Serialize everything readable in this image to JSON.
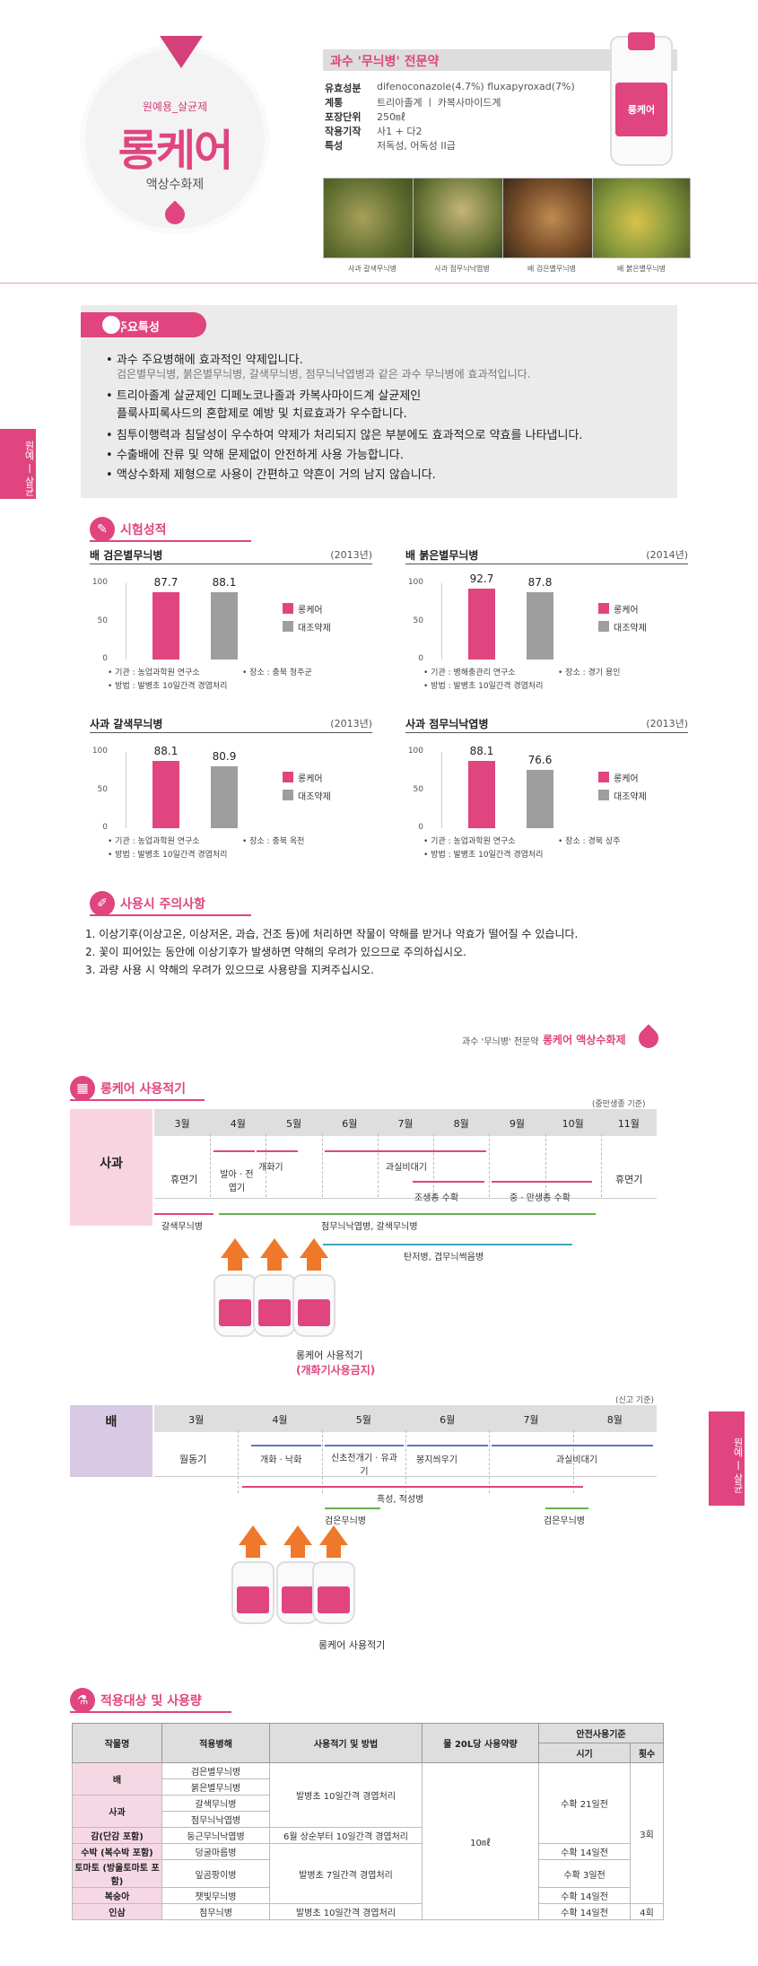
{
  "hero": {
    "subtitle": "원예용_살균제",
    "product_name": "롱케어",
    "formulation": "액상수화제"
  },
  "spec": {
    "title": "과수 '무늬병' 전문약",
    "rows": [
      {
        "key": "유효성분",
        "value": "difenoconazole(4.7%) fluxapyroxad(7%)"
      },
      {
        "key": "계통",
        "value": "트리아졸계 ㅣ 카복사마이드계"
      },
      {
        "key": "포장단위",
        "value": "250㎖"
      },
      {
        "key": "작용기작",
        "value": "사1 + 다2"
      },
      {
        "key": "특성",
        "value": "저독성, 어독성 ⅠⅠ급"
      }
    ],
    "bottle_label": "롱케어",
    "photos": [
      {
        "caption": "사과 갈색무늬병"
      },
      {
        "caption": "사과 점무늬낙엽병"
      },
      {
        "caption": "배 검은별무늬병"
      },
      {
        "caption": "배 붉은별무늬병"
      }
    ]
  },
  "side_tab_top": "원예 ㅣ 살균",
  "side_tab_bottom": "원예 ㅣ 살균",
  "features": {
    "heading": "주요특성",
    "items": [
      {
        "main": "과수 주요병해에 효과적인 약제입니다.",
        "sub": "검은별무늬병, 붉은별무늬병, 갈색무늬병, 점무늬낙엽병과 같은 과수 무늬병에 효과적입니다."
      },
      {
        "main": "트리아졸계 살균제인 디페노코나졸과 카복사마이드계 살균제인",
        "sub2": "플룩사피록사드의 혼합제로 예방 및 치료효과가 우수합니다."
      },
      {
        "main": "침투이행력과 침달성이 우수하여 약제가 처리되지 않은 부분에도 효과적으로 약효를 나타냅니다."
      },
      {
        "main": "수출배에 잔류 및 약해 문제없이 안전하게 사용 가능합니다."
      },
      {
        "main": "액상수화제 제형으로 사용이 간편하고 약흔이 거의 남지 않습니다."
      }
    ]
  },
  "trials": {
    "heading": "시험성적",
    "legend": [
      "롱케어",
      "대조약제"
    ],
    "colors": {
      "product": "#e0457f",
      "control": "#9e9e9e"
    }
  },
  "chart_data": [
    {
      "type": "bar",
      "title": "배 검은별무늬병",
      "year": "(2013년)",
      "categories": [
        "롱케어",
        "대조약제"
      ],
      "values": [
        87.7,
        88.1
      ],
      "ylim": [
        0,
        100
      ],
      "yticks": [
        "100",
        "50",
        "0"
      ],
      "agency": "• 기관 : 농업과학원 연구소",
      "place": "• 장소 : 충북 청주군",
      "method": "• 방법 : 발병초 10일간격 경엽처리"
    },
    {
      "type": "bar",
      "title": "배 붉은별무늬병",
      "year": "(2014년)",
      "categories": [
        "롱케어",
        "대조약제"
      ],
      "values": [
        92.7,
        87.8
      ],
      "ylim": [
        0,
        100
      ],
      "yticks": [
        "100",
        "50",
        "0"
      ],
      "agency": "• 기관 : 병해충관리 연구소",
      "place": "• 장소 : 경기 용인",
      "method": "• 방법 : 발병초 10일간격 경엽처리"
    },
    {
      "type": "bar",
      "title": "사과 갈색무늬병",
      "year": "(2013년)",
      "categories": [
        "롱케어",
        "대조약제"
      ],
      "values": [
        88.1,
        80.9
      ],
      "ylim": [
        0,
        100
      ],
      "yticks": [
        "100",
        "50",
        "0"
      ],
      "agency": "• 기관 : 농업과학원 연구소",
      "place": "• 장소 : 충북 옥천",
      "method": "• 방법 : 발병초 10일간격 경엽처리"
    },
    {
      "type": "bar",
      "title": "사과 점무늬낙엽병",
      "year": "(2013년)",
      "categories": [
        "롱케어",
        "대조약제"
      ],
      "values": [
        88.1,
        76.6
      ],
      "ylim": [
        0,
        100
      ],
      "yticks": [
        "100",
        "50",
        "0"
      ],
      "agency": "• 기관 : 농업과학원 연구소",
      "place": "• 장소 : 경북 상주",
      "method": "• 방법 : 발병초 10일간격 경엽처리"
    }
  ],
  "caution": {
    "heading": "사용시 주의사항",
    "items": [
      "1. 이상기후(이상고온, 이상저온, 과습, 건조 등)에 처리하면 작물이 약해를 받거나 약효가 떨어질 수 있습니다.",
      "2. 꽃이 피어있는 동안에 이상기후가 발생하면 약해의 우려가 있으므로 주의하십시오.",
      "3. 과량 사용 시 약해의 우려가 있으므로 사용량을 지켜주십시오."
    ]
  },
  "footer_line": {
    "prefix": "과수 '무늬병' 전문약",
    "product": "롱케어 액상수화제"
  },
  "schedule": {
    "heading": "롱케어 사용적기",
    "apple": {
      "note": "(중만생종 기준)",
      "crop": "사과",
      "months": [
        "3월",
        "4월",
        "5월",
        "6월",
        "7월",
        "8월",
        "9월",
        "10월",
        "11월"
      ],
      "stages": [
        "휴면기",
        "발아 · 전엽기",
        "개화기",
        "과실비대기",
        "조생종 수확",
        "중 · 만생종 수확",
        "휴면기"
      ],
      "diseases": [
        "갈색무늬병",
        "점무늬낙엽병, 갈색무늬병",
        "탄저병, 겹무늬썩음병"
      ],
      "usage": "롱케어 사용적기",
      "warning": "(개화기사용금지)"
    },
    "pear": {
      "note": "(신고 기준)",
      "crop": "배",
      "months": [
        "3월",
        "4월",
        "5월",
        "6월",
        "7월",
        "8월"
      ],
      "stages": [
        "월동기",
        "개화 · 낙화",
        "신초전개기 · 유과기",
        "봉지씌우기",
        "과실비대기"
      ],
      "diseases": [
        "흑성, 적성병",
        "검은무늬병",
        "검은무늬병"
      ],
      "usage": "롱케어 사용적기"
    }
  },
  "table": {
    "heading": "적용대상 및 사용량",
    "headers": {
      "crop": "작물명",
      "disease": "적용병해",
      "method": "사용적기 및 방법",
      "dose": "물 20L당 사용약량",
      "safety": "안전사용기준",
      "period": "시기",
      "times": "횟수"
    },
    "rows": [
      {
        "crop": "배",
        "diseases": [
          "검은별무늬병",
          "붉은별무늬병"
        ]
      },
      {
        "crop": "사과",
        "diseases": [
          "갈색무늬병",
          "점무늬낙엽병"
        ]
      },
      {
        "crop": "감(단감 포함)",
        "diseases": [
          "둥근무늬낙엽병"
        ]
      },
      {
        "crop": "수박 (복수박 포함)",
        "diseases": [
          "덩굴마름병"
        ]
      },
      {
        "crop": "토마토 (방울토마토 포함)",
        "diseases": [
          "잎곰팡이병"
        ]
      },
      {
        "crop": "복숭아",
        "diseases": [
          "잿빛무늬병"
        ]
      },
      {
        "crop": "인삼",
        "diseases": [
          "점무늬병"
        ]
      }
    ],
    "methods": [
      "발병초 10일간격 경엽처리",
      "6월 상순부터 10일간격 경엽처리",
      "발병초 7일간격 경엽처리",
      "발병초 10일간격 경엽처리"
    ],
    "dose": "10㎖",
    "periods": [
      "수확 21일전",
      "수확 14일전",
      "수확 3일전",
      "수확 14일전",
      "수확 14일전"
    ],
    "times": [
      "3회",
      "4회"
    ]
  }
}
